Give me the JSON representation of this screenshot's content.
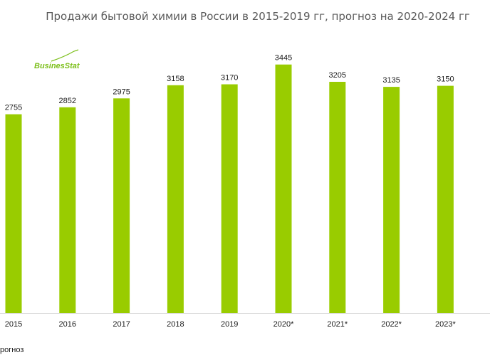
{
  "chart_data": {
    "type": "bar",
    "title": "Продажи бытовой химии в России в 2015-2019 гг, прогноз на 2020-2024 гг",
    "categories": [
      "2015",
      "2016",
      "2017",
      "2018",
      "2019",
      "2020*",
      "2021*",
      "2022*",
      "2023*"
    ],
    "values": [
      2755,
      2852,
      2975,
      3158,
      3170,
      3445,
      3205,
      3135,
      3150
    ],
    "bar_color": "#99cc00",
    "ylim": [
      0,
      3560
    ],
    "grid": false,
    "legend": "none"
  },
  "footnote": "рогноз",
  "logo": {
    "text": "BusinesStat",
    "color": "#7cbf1a"
  }
}
